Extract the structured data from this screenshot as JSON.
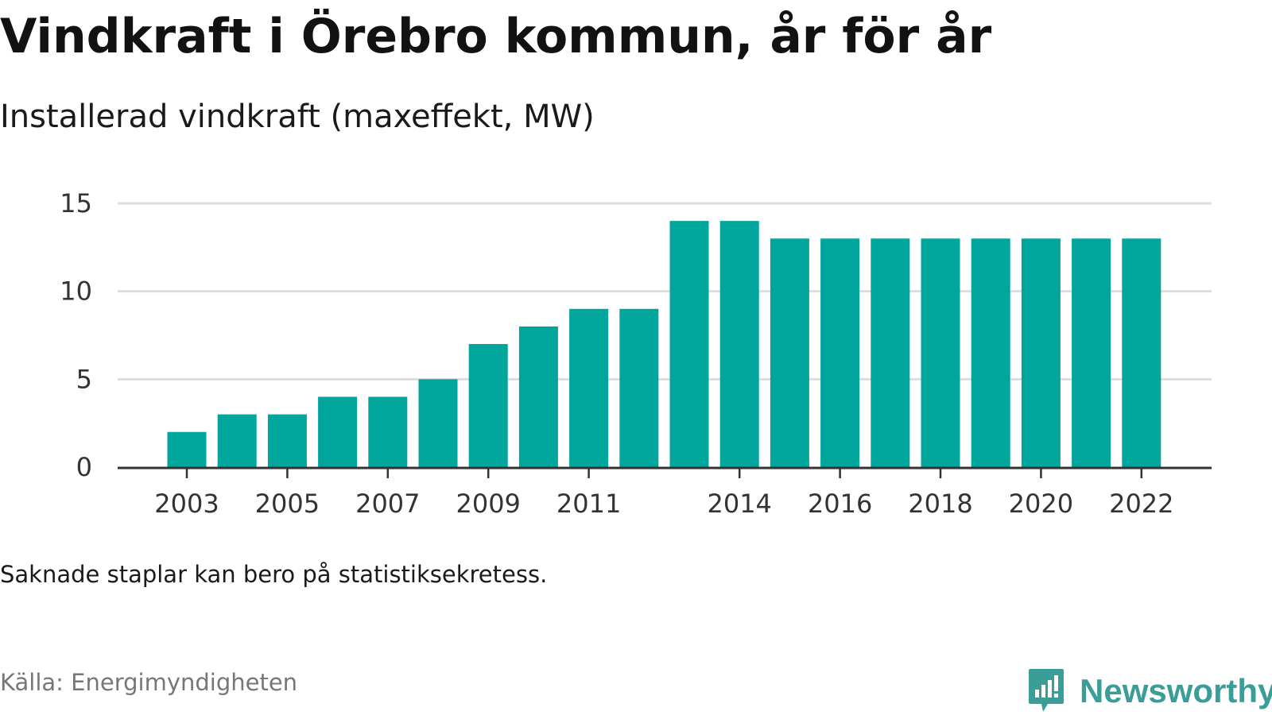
{
  "title": "Vindkraft i Örebro kommun, år för år",
  "subtitle": "Installerad vindkraft (maxeffekt, MW)",
  "note": "Saknade staplar kan bero på statistiksekretess.",
  "source": "Källa: Energimyndigheten",
  "brand": {
    "name": "Newsworthy",
    "icon": "newsworthy-logo-icon",
    "color": "#3a9d98"
  },
  "colors": {
    "bar": "#00a59b",
    "grid": "#dddddd",
    "axis": "#333333"
  },
  "chart_data": {
    "type": "bar",
    "categories": [
      "2003",
      "2004",
      "2005",
      "2006",
      "2007",
      "2008",
      "2009",
      "2010",
      "2011",
      "2012",
      "2013",
      "2014",
      "2015",
      "2016",
      "2017",
      "2018",
      "2019",
      "2020",
      "2021",
      "2022"
    ],
    "values": [
      2,
      3,
      3,
      4,
      4,
      5,
      7,
      8,
      9,
      9,
      14,
      14,
      13,
      13,
      13,
      13,
      13,
      13,
      13,
      13
    ],
    "x_tick_labels": [
      {
        "label": "2003",
        "index": 0
      },
      {
        "label": "2005",
        "index": 2
      },
      {
        "label": "2007",
        "index": 4
      },
      {
        "label": "2009",
        "index": 6
      },
      {
        "label": "2011",
        "index": 8
      },
      {
        "label": "2014",
        "index": 11
      },
      {
        "label": "2016",
        "index": 13
      },
      {
        "label": "2018",
        "index": 15
      },
      {
        "label": "2020",
        "index": 17
      },
      {
        "label": "2022",
        "index": 19
      }
    ],
    "y_ticks": [
      0,
      5,
      10,
      15
    ],
    "ylim": [
      0,
      15
    ],
    "xlabel": "",
    "ylabel": "",
    "grid": true,
    "legend": "none"
  }
}
